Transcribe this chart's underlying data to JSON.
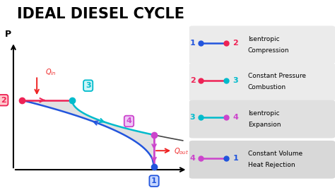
{
  "title": "IDEAL DIESEL CYCLE",
  "title_fontsize": 15,
  "background_color": "#ffffff",
  "points": {
    "1": [
      0.46,
      0.11
    ],
    "2": [
      0.065,
      0.52
    ],
    "3": [
      0.215,
      0.52
    ],
    "4": [
      0.46,
      0.305
    ]
  },
  "colors": {
    "blue": "#2255dd",
    "red": "#ee2255",
    "cyan": "#00bbcc",
    "purple": "#cc44cc"
  },
  "legend_items": [
    {
      "label1": "1",
      "label2": "2",
      "desc1": "Isentropic",
      "desc2": "Compression",
      "c1": "#2255dd",
      "c2": "#ee2255",
      "lc": "#2255dd",
      "bg": "#ebebeb"
    },
    {
      "label1": "2",
      "label2": "3",
      "desc1": "Constant Pressure",
      "desc2": "Combustion",
      "c1": "#ee2255",
      "c2": "#00bbcc",
      "lc": "#ee2255",
      "bg": "#ebebeb"
    },
    {
      "label1": "3",
      "label2": "4",
      "desc1": "Isentropic",
      "desc2": "Expansion",
      "c1": "#00bbcc",
      "c2": "#cc44cc",
      "lc": "#00bbcc",
      "bg": "#e0e0e0"
    },
    {
      "label1": "4",
      "label2": "1",
      "desc1": "Constant Volume",
      "desc2": "Heat Rejection",
      "c1": "#cc44cc",
      "c2": "#2255dd",
      "lc": "#cc44cc",
      "bg": "#d8d8d8"
    }
  ],
  "Qin_color": "#ee2222",
  "Qout_color": "#ee2222"
}
